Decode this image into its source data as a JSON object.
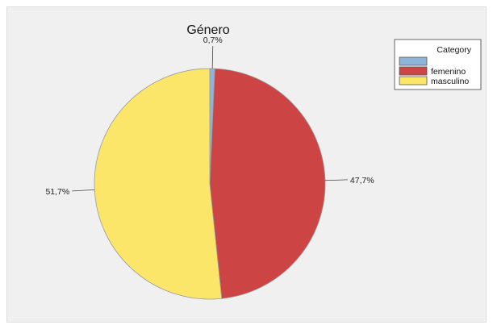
{
  "chart_data": {
    "type": "pie",
    "title": "Género",
    "legend": {
      "title": "Category",
      "placement": "top-right",
      "entries": [
        "",
        "femenino",
        "masculino"
      ]
    },
    "slices": [
      {
        "label": "",
        "value": 0.7,
        "value_label": "0,7%",
        "color": "#8fb4d9"
      },
      {
        "label": "femenino",
        "value": 47.7,
        "value_label": "47,7%",
        "color": "#cc4444"
      },
      {
        "label": "masculino",
        "value": 51.7,
        "value_label": "51,7%",
        "color": "#fbe66a"
      }
    ]
  }
}
